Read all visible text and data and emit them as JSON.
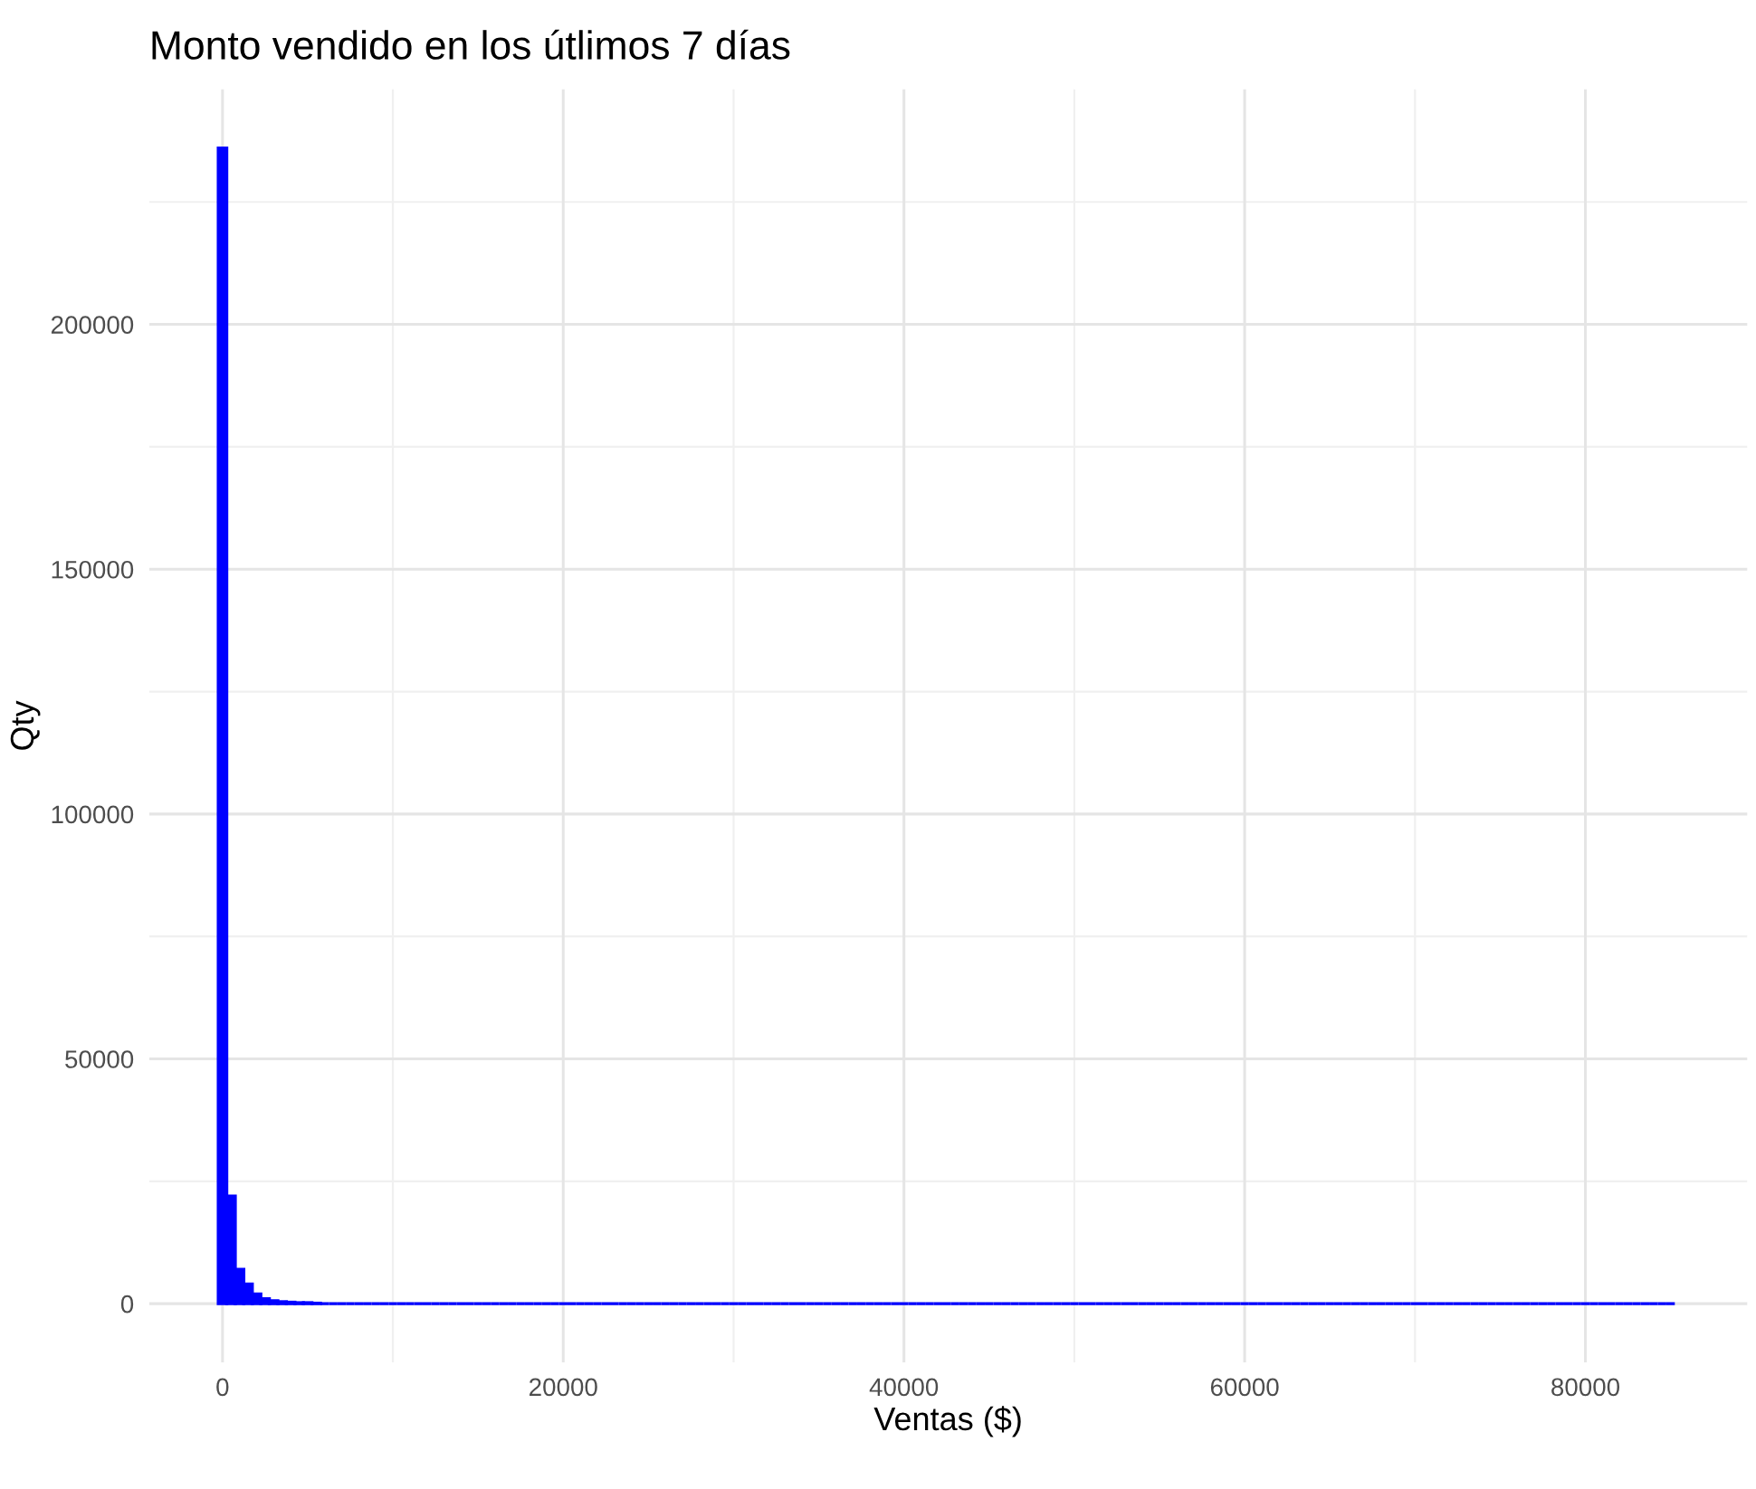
{
  "chart_data": {
    "type": "histogram",
    "title": "Monto vendido en los útlimos 7 días",
    "xlabel": "Ventas ($)",
    "ylabel": "Qty",
    "bins": [
      -250,
      250,
      750,
      1250,
      1750,
      2250,
      2750,
      3250,
      3750,
      4250,
      4750,
      5250,
      5750,
      6250,
      6750,
      7250,
      7750,
      8250,
      8750,
      9250,
      9750,
      10250,
      10750,
      11250,
      11750,
      12250,
      12750,
      13250,
      13750,
      14250,
      14750,
      15250,
      15750,
      16250,
      16750,
      17250,
      17750,
      18250,
      18750,
      19250,
      19750,
      20250,
      20750,
      21250,
      21750,
      22250,
      22750,
      23250,
      23750,
      24250,
      24750,
      25250,
      25750,
      26250,
      26750,
      27250,
      27750,
      28250,
      28750,
      29250,
      29750,
      30250,
      30750,
      31250,
      31750,
      32250,
      32750,
      33250,
      33750,
      34250,
      34750,
      35250,
      35750,
      36250,
      36750,
      37250,
      37750,
      38250,
      38750,
      39250,
      39750,
      40250,
      40750,
      41250,
      41750,
      42250,
      42750,
      43250,
      43750,
      44250,
      44750,
      45250,
      45750,
      46250,
      46750,
      47250,
      47750,
      48250,
      48750,
      49250,
      49750,
      50250,
      50750,
      51250,
      51750,
      52250,
      52750,
      53250,
      53750,
      54250,
      54750,
      55250,
      55750,
      56250,
      56750,
      57250,
      57750,
      58250,
      58750,
      59250,
      59750,
      60250,
      60750,
      61250,
      61750,
      62250,
      62750,
      63250,
      63750,
      64250,
      64750,
      65250,
      65750,
      66250,
      66750,
      67250,
      67750,
      68250,
      68750,
      69250,
      69750,
      70250,
      70750,
      71250,
      71750,
      72250,
      72750,
      73250,
      73750,
      74250,
      74750,
      75250,
      75750,
      76250,
      76750,
      77250,
      77750,
      78250,
      78750,
      79250,
      79750,
      80250,
      80750,
      81250,
      81750,
      82250,
      82750,
      83250,
      83750,
      84250,
      84750,
      85250
    ],
    "values": [
      236000,
      22000,
      7000,
      4000,
      2000,
      1000,
      600,
      400,
      300,
      200,
      200,
      100,
      0,
      0,
      0,
      0,
      0,
      0,
      0,
      0,
      0,
      0,
      0,
      0,
      0,
      0,
      0,
      0,
      0,
      0,
      0,
      0,
      0,
      0,
      0,
      0,
      0,
      0,
      0,
      0,
      0,
      0,
      0,
      0,
      0,
      0,
      0,
      0,
      0,
      0,
      0,
      0,
      0,
      0,
      0,
      0,
      0,
      0,
      0,
      0,
      0,
      0,
      0,
      0,
      0,
      0,
      0,
      0,
      0,
      0,
      0,
      0,
      0,
      0,
      0,
      0,
      0,
      0,
      0,
      0,
      0,
      0,
      0,
      0,
      0,
      0,
      0,
      0,
      0,
      0,
      0,
      0,
      0,
      0,
      0,
      0,
      0,
      0,
      0,
      0,
      0,
      0,
      0,
      0,
      0,
      0,
      0,
      0,
      0,
      0,
      0,
      0,
      0,
      0,
      0,
      0,
      0,
      0,
      0,
      0,
      0,
      0,
      0,
      0,
      0,
      0,
      0,
      0,
      0,
      0,
      0,
      0,
      0,
      0,
      0,
      0,
      0,
      0,
      0,
      0,
      0,
      0,
      0,
      0,
      0,
      0,
      0,
      0,
      0,
      0,
      0,
      0,
      0,
      0,
      0,
      0,
      0,
      0,
      0,
      0,
      0,
      0,
      0,
      0,
      0,
      0,
      0,
      0,
      0,
      0,
      0
    ],
    "color": "#0000ff",
    "xlim": [
      -4300,
      89500
    ],
    "ylim": [
      -12000,
      248000
    ],
    "xticks": [
      0,
      20000,
      40000,
      60000,
      80000
    ],
    "yticks": [
      0,
      50000,
      100000,
      150000,
      200000
    ],
    "grid": true
  }
}
